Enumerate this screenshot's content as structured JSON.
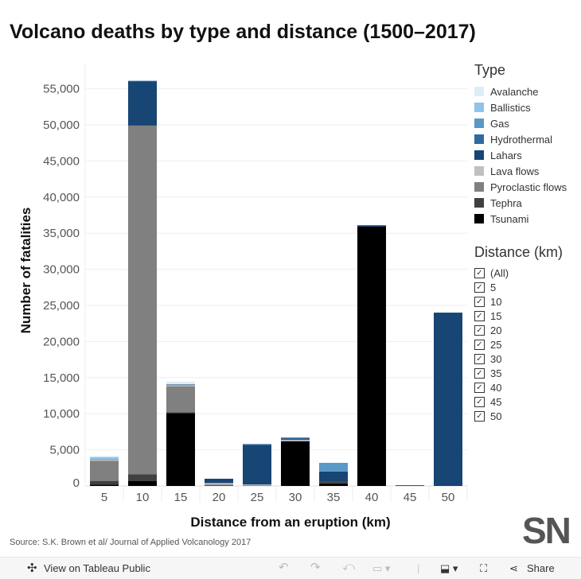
{
  "chart_data": {
    "type": "stacked-bar",
    "title": "Volcano deaths by type and distance (1500–2017)",
    "xlabel": "Distance from an eruption (km)",
    "ylabel": "Number of fatalities",
    "ylim": [
      0,
      56000
    ],
    "yticks": [
      "0",
      "5,000",
      "10,000",
      "15,000",
      "20,000",
      "25,000",
      "30,000",
      "35,000",
      "40,000",
      "45,000",
      "50,000",
      "55,000"
    ],
    "ytick_values": [
      0,
      5000,
      10000,
      15000,
      20000,
      25000,
      30000,
      35000,
      40000,
      45000,
      50000,
      55000
    ],
    "grid": true,
    "categories": [
      "5",
      "10",
      "15",
      "20",
      "25",
      "30",
      "35",
      "40",
      "45",
      "50"
    ],
    "series": [
      {
        "name": "Tsunami",
        "color": "#000000",
        "values": [
          200,
          700,
          10100,
          0,
          0,
          6200,
          350,
          35900,
          0,
          0
        ]
      },
      {
        "name": "Tephra",
        "color": "#404040",
        "values": [
          500,
          900,
          100,
          100,
          0,
          0,
          300,
          0,
          0,
          0
        ]
      },
      {
        "name": "Pyroclastic flows",
        "color": "#808080",
        "values": [
          2800,
          48300,
          3600,
          100,
          100,
          0,
          0,
          0,
          0,
          0
        ]
      },
      {
        "name": "Lava flows",
        "color": "#c0c0c0",
        "values": [
          150,
          0,
          150,
          200,
          100,
          200,
          0,
          0,
          0,
          0
        ]
      },
      {
        "name": "Lahars",
        "color": "#174574",
        "values": [
          0,
          6100,
          100,
          600,
          5500,
          100,
          1350,
          200,
          100,
          24000
        ]
      },
      {
        "name": "Hydrothermal",
        "color": "#2f6aa0",
        "values": [
          50,
          100,
          0,
          0,
          100,
          200,
          0,
          0,
          0,
          0
        ]
      },
      {
        "name": "Gas",
        "color": "#5899c8",
        "values": [
          0,
          0,
          0,
          0,
          0,
          0,
          1200,
          0,
          0,
          0
        ]
      },
      {
        "name": "Ballistics",
        "color": "#8ec4ea",
        "values": [
          300,
          0,
          0,
          0,
          0,
          0,
          0,
          0,
          0,
          0
        ]
      },
      {
        "name": "Avalanche",
        "color": "#ddeef8",
        "values": [
          150,
          0,
          400,
          0,
          0,
          0,
          0,
          0,
          0,
          0
        ]
      }
    ]
  },
  "legend_type": {
    "title": "Type",
    "items": [
      "Avalanche",
      "Ballistics",
      "Gas",
      "Hydrothermal",
      "Lahars",
      "Lava flows",
      "Pyroclastic flows",
      "Tephra",
      "Tsunami"
    ],
    "colors": [
      "#ddeef8",
      "#8ec4ea",
      "#5899c8",
      "#2f6aa0",
      "#174574",
      "#c0c0c0",
      "#808080",
      "#404040",
      "#000000"
    ]
  },
  "legend_distance": {
    "title": "Distance (km)",
    "items": [
      "(All)",
      "5",
      "10",
      "15",
      "20",
      "25",
      "30",
      "35",
      "40",
      "45",
      "50"
    ]
  },
  "source": "Source: S.K. Brown et al/ Journal of Applied Volcanology 2017",
  "logo": "SN",
  "footer": {
    "view": "View on Tableau Public",
    "share": "Share"
  }
}
